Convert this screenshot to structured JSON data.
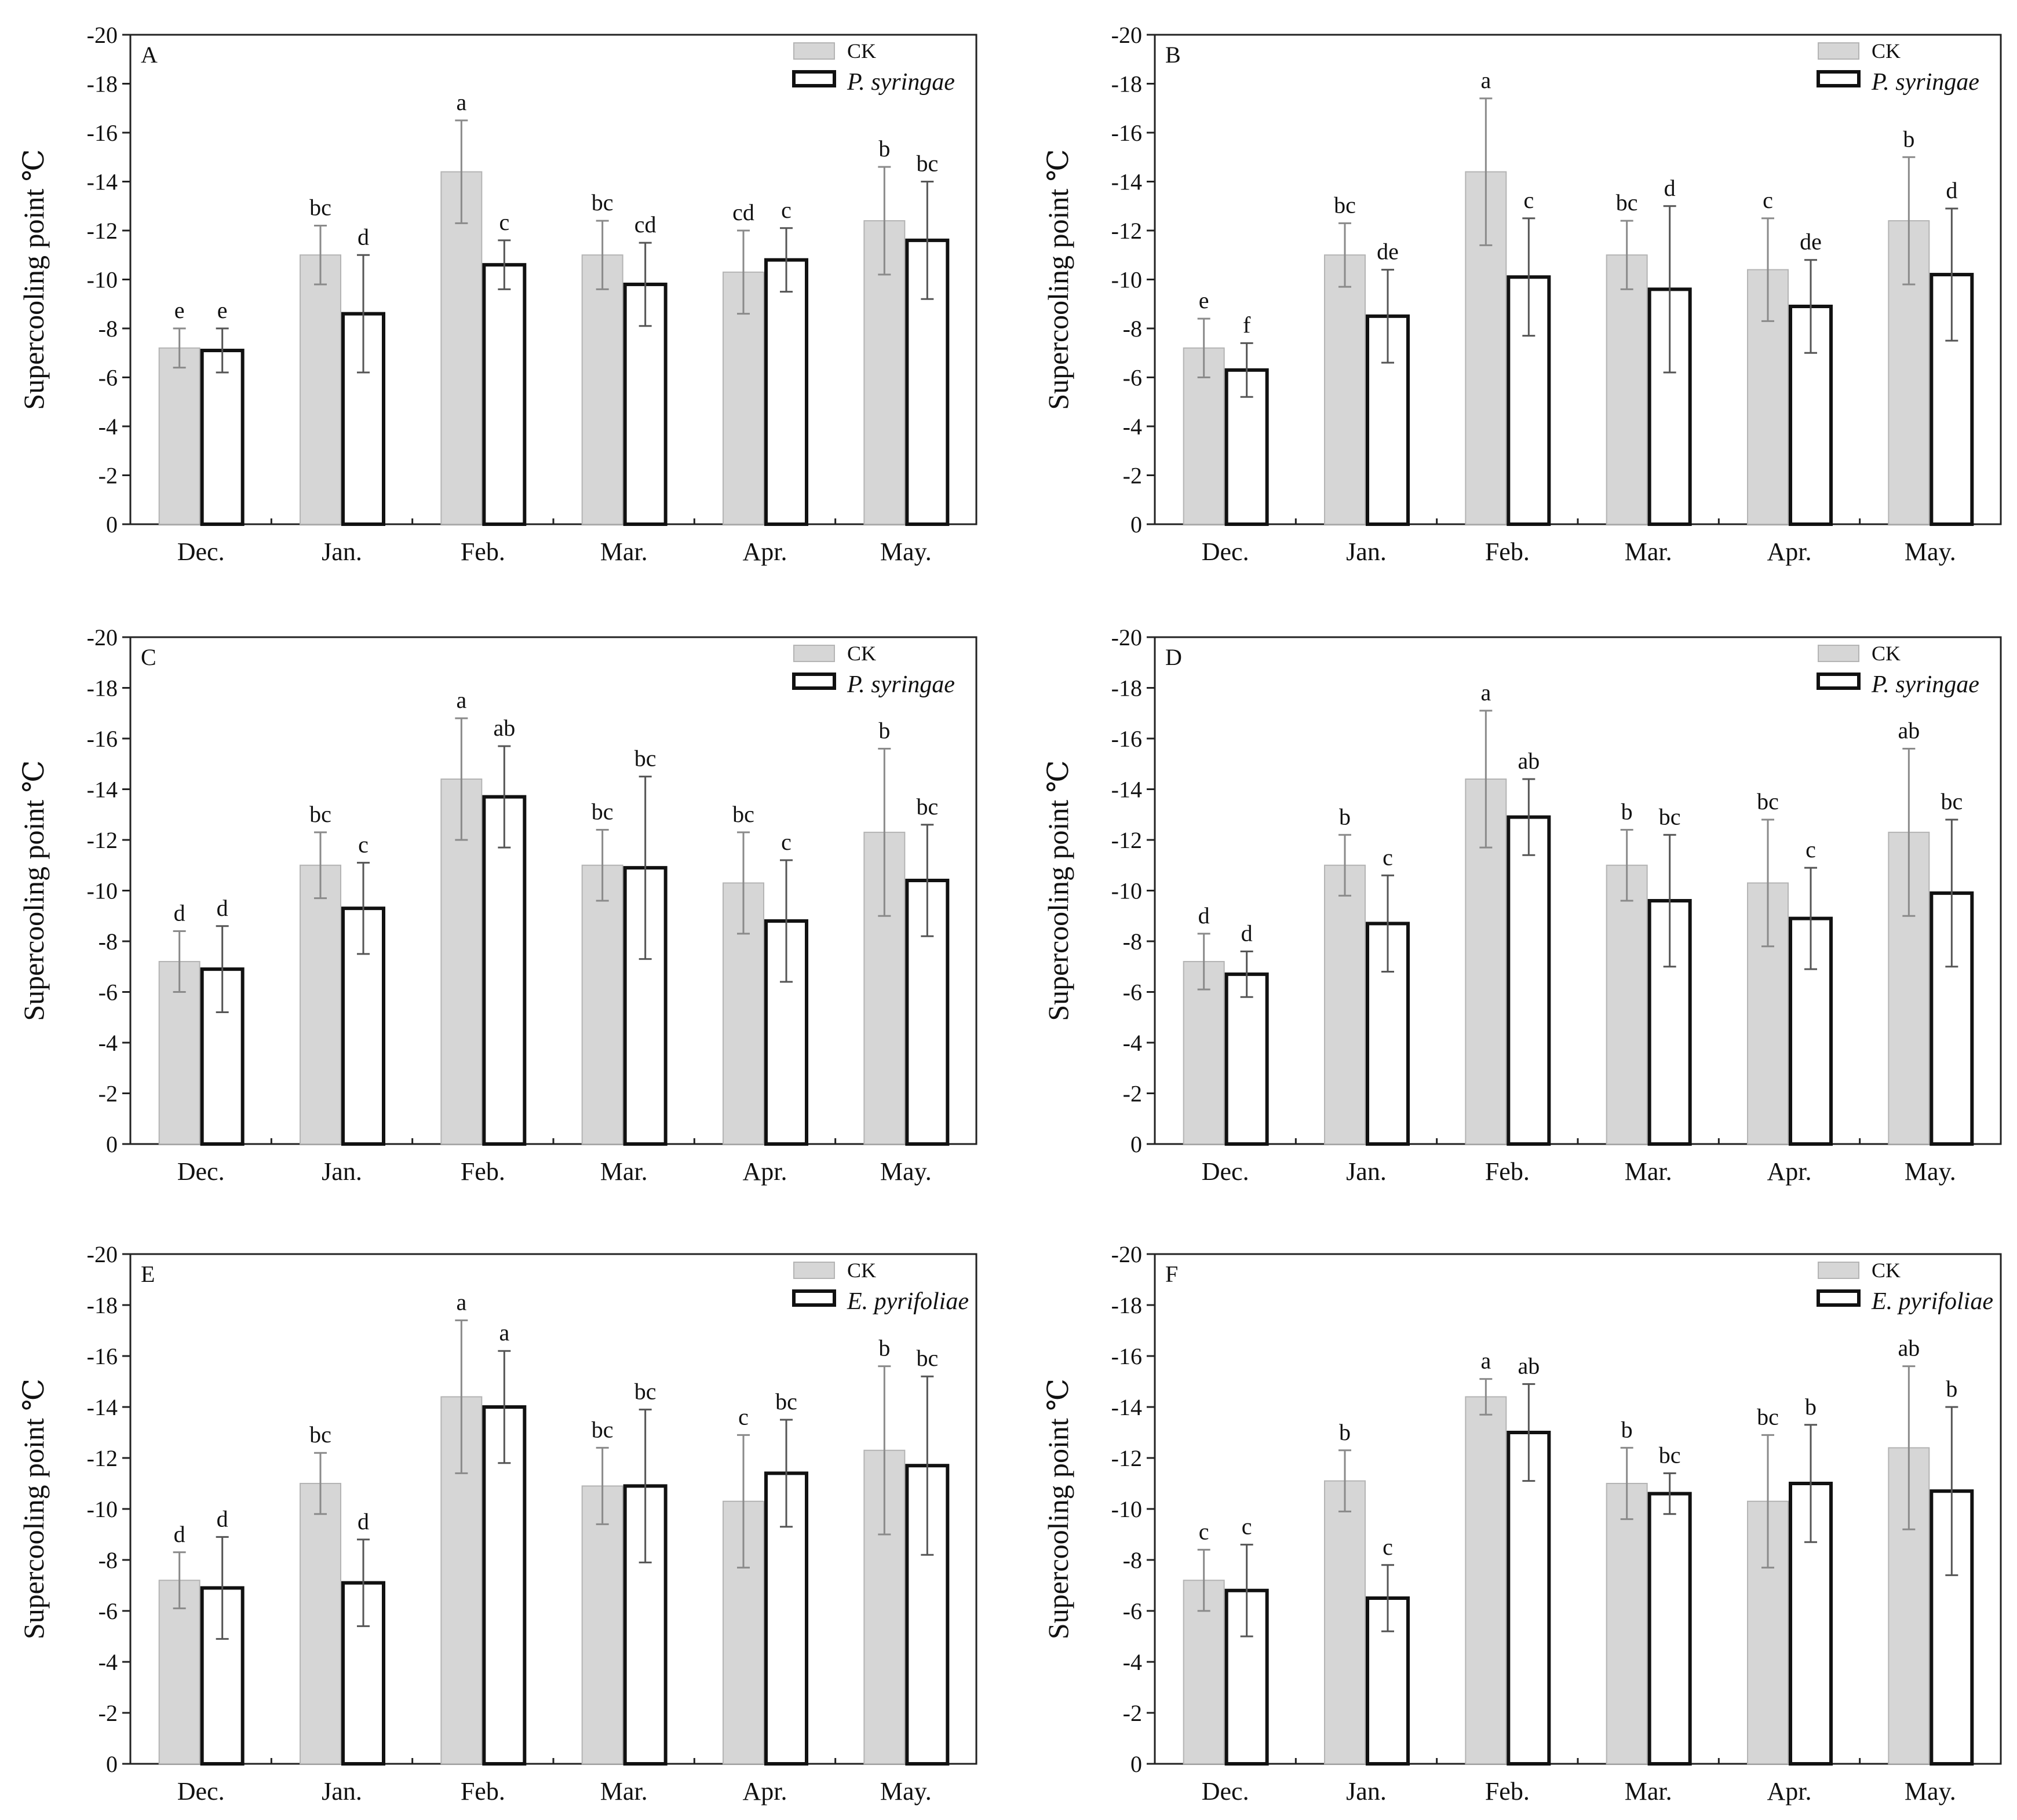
{
  "colors": {
    "ck_fill": "#d6d6d6",
    "treatment_fill": "#ffffff",
    "axis": "#222222"
  },
  "chart_data": [
    {
      "panel": "A",
      "type": "bar",
      "ylabel": "Supercooling point ℃",
      "categories": [
        "Dec.",
        "Jan.",
        "Feb.",
        "Mar.",
        "Apr.",
        "May."
      ],
      "yticks": [
        "0",
        "-2",
        "-4",
        "-6",
        "-8",
        "-10",
        "-12",
        "-14",
        "-16",
        "-18",
        "-20"
      ],
      "ylim": [
        0,
        -20
      ],
      "legend_position": "top-right",
      "series": [
        {
          "name": "CK",
          "values": [
            -7.2,
            -11.0,
            -14.4,
            -11.0,
            -10.3,
            -12.4
          ],
          "errors": [
            0.8,
            1.2,
            2.1,
            1.4,
            1.7,
            2.2
          ],
          "letters": [
            "e",
            "bc",
            "a",
            "bc",
            "cd",
            "b"
          ]
        },
        {
          "name": "P. syringae",
          "values": [
            -7.1,
            -8.6,
            -10.6,
            -9.8,
            -10.8,
            -11.6
          ],
          "errors": [
            0.9,
            2.4,
            1.0,
            1.7,
            1.3,
            2.4
          ],
          "letters": [
            "e",
            "d",
            "c",
            "cd",
            "c",
            "bc"
          ]
        }
      ]
    },
    {
      "panel": "B",
      "type": "bar",
      "ylabel": "Supercooling point ℃",
      "categories": [
        "Dec.",
        "Jan.",
        "Feb.",
        "Mar.",
        "Apr.",
        "May."
      ],
      "yticks": [
        "0",
        "-2",
        "-4",
        "-6",
        "-8",
        "-10",
        "-12",
        "-14",
        "-16",
        "-18",
        "-20"
      ],
      "ylim": [
        0,
        -20
      ],
      "legend_position": "top-right",
      "series": [
        {
          "name": "CK",
          "values": [
            -7.2,
            -11.0,
            -14.4,
            -11.0,
            -10.4,
            -12.4
          ],
          "errors": [
            1.2,
            1.3,
            3.0,
            1.4,
            2.1,
            2.6
          ],
          "letters": [
            "e",
            "bc",
            "a",
            "bc",
            "c",
            "b"
          ]
        },
        {
          "name": "P. syringae",
          "values": [
            -6.3,
            -8.5,
            -10.1,
            -9.6,
            -8.9,
            -10.2
          ],
          "errors": [
            1.1,
            1.9,
            2.4,
            3.4,
            1.9,
            2.7
          ],
          "letters": [
            "f",
            "de",
            "c",
            "d",
            "de",
            "d"
          ]
        }
      ]
    },
    {
      "panel": "C",
      "type": "bar",
      "ylabel": "Supercooling point ℃",
      "categories": [
        "Dec.",
        "Jan.",
        "Feb.",
        "Mar.",
        "Apr.",
        "May."
      ],
      "yticks": [
        "0",
        "-2",
        "-4",
        "-6",
        "-8",
        "-10",
        "-12",
        "-14",
        "-16",
        "-18",
        "-20"
      ],
      "ylim": [
        0,
        -20
      ],
      "legend_position": "top-right",
      "series": [
        {
          "name": "CK",
          "values": [
            -7.2,
            -11.0,
            -14.4,
            -11.0,
            -10.3,
            -12.3
          ],
          "errors": [
            1.2,
            1.3,
            2.4,
            1.4,
            2.0,
            3.3
          ],
          "letters": [
            "d",
            "bc",
            "a",
            "bc",
            "bc",
            "b"
          ]
        },
        {
          "name": "P. syringae",
          "values": [
            -6.9,
            -9.3,
            -13.7,
            -10.9,
            -8.8,
            -10.4
          ],
          "errors": [
            1.7,
            1.8,
            2.0,
            3.6,
            2.4,
            2.2
          ],
          "letters": [
            "d",
            "c",
            "ab",
            "bc",
            "c",
            "bc"
          ]
        }
      ]
    },
    {
      "panel": "D",
      "type": "bar",
      "ylabel": "Supercooling point ℃",
      "categories": [
        "Dec.",
        "Jan.",
        "Feb.",
        "Mar.",
        "Apr.",
        "May."
      ],
      "yticks": [
        "0",
        "-2",
        "-4",
        "-6",
        "-8",
        "-10",
        "-12",
        "-14",
        "-16",
        "-18",
        "-20"
      ],
      "ylim": [
        0,
        -20
      ],
      "legend_position": "top-right",
      "series": [
        {
          "name": "CK",
          "values": [
            -7.2,
            -11.0,
            -14.4,
            -11.0,
            -10.3,
            -12.3
          ],
          "errors": [
            1.1,
            1.2,
            2.7,
            1.4,
            2.5,
            3.3
          ],
          "letters": [
            "d",
            "b",
            "a",
            "b",
            "bc",
            "ab"
          ]
        },
        {
          "name": "P. syringae",
          "values": [
            -6.7,
            -8.7,
            -12.9,
            -9.6,
            -8.9,
            -9.9
          ],
          "errors": [
            0.9,
            1.9,
            1.5,
            2.6,
            2.0,
            2.9
          ],
          "letters": [
            "d",
            "c",
            "ab",
            "bc",
            "c",
            "bc"
          ]
        }
      ]
    },
    {
      "panel": "E",
      "type": "bar",
      "ylabel": "Supercooling point ℃",
      "categories": [
        "Dec.",
        "Jan.",
        "Feb.",
        "Mar.",
        "Apr.",
        "May."
      ],
      "yticks": [
        "0",
        "-2",
        "-4",
        "-6",
        "-8",
        "-10",
        "-12",
        "-14",
        "-16",
        "-18",
        "-20"
      ],
      "ylim": [
        0,
        -20
      ],
      "legend_position": "top-right",
      "series": [
        {
          "name": "CK",
          "values": [
            -7.2,
            -11.0,
            -14.4,
            -10.9,
            -10.3,
            -12.3
          ],
          "errors": [
            1.1,
            1.2,
            3.0,
            1.5,
            2.6,
            3.3
          ],
          "letters": [
            "d",
            "bc",
            "a",
            "bc",
            "c",
            "b"
          ]
        },
        {
          "name": "E. pyrifoliae",
          "values": [
            -6.9,
            -7.1,
            -14.0,
            -10.9,
            -11.4,
            -11.7
          ],
          "errors": [
            2.0,
            1.7,
            2.2,
            3.0,
            2.1,
            3.5
          ],
          "letters": [
            "d",
            "d",
            "a",
            "bc",
            "bc",
            "bc"
          ]
        }
      ]
    },
    {
      "panel": "F",
      "type": "bar",
      "ylabel": "Supercooling point ℃",
      "categories": [
        "Dec.",
        "Jan.",
        "Feb.",
        "Mar.",
        "Apr.",
        "May."
      ],
      "yticks": [
        "0",
        "-2",
        "-4",
        "-6",
        "-8",
        "-10",
        "-12",
        "-14",
        "-16",
        "-18",
        "-20"
      ],
      "ylim": [
        0,
        -20
      ],
      "legend_position": "top-right",
      "series": [
        {
          "name": "CK",
          "values": [
            -7.2,
            -11.1,
            -14.4,
            -11.0,
            -10.3,
            -12.4
          ],
          "errors": [
            1.2,
            1.2,
            0.7,
            1.4,
            2.6,
            3.2
          ],
          "letters": [
            "c",
            "b",
            "a",
            "b",
            "bc",
            "ab"
          ]
        },
        {
          "name": "E. pyrifoliae",
          "values": [
            -6.8,
            -6.5,
            -13.0,
            -10.6,
            -11.0,
            -10.7
          ],
          "errors": [
            1.8,
            1.3,
            1.9,
            0.8,
            2.3,
            3.3
          ],
          "letters": [
            "c",
            "c",
            "ab",
            "bc",
            "b",
            "b"
          ]
        }
      ]
    }
  ]
}
